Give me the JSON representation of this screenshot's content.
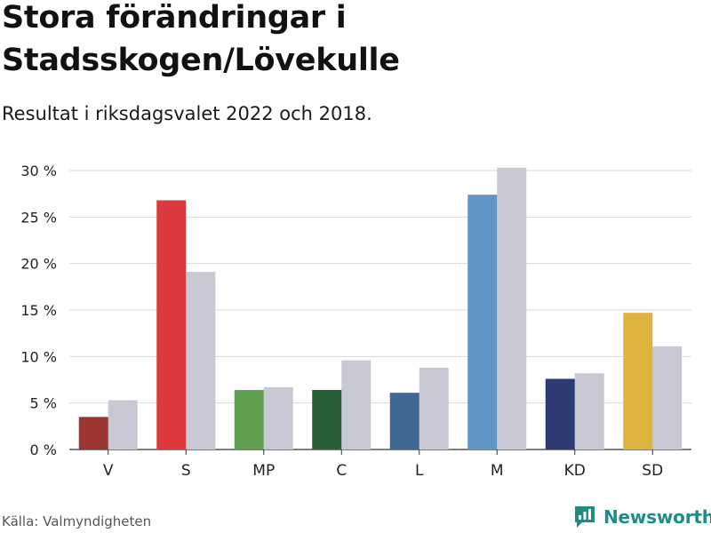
{
  "title": "Stora förändringar i Stadsskogen/Lövekulle",
  "subtitle": "Resultat i riksdagsvalet 2022 och 2018.",
  "source": "Källa: Valmyndigheten",
  "brand": "Newsworthy",
  "brand_icon": "newsworthy-logo-icon",
  "colors": {
    "brand": "#1f8d86",
    "previous": "#c8c8d4",
    "grid": "#d9d9d9"
  },
  "chart_data": {
    "type": "bar",
    "categories": [
      "V",
      "S",
      "MP",
      "C",
      "L",
      "M",
      "KD",
      "SD"
    ],
    "series": [
      {
        "name": "2022",
        "values": [
          3.5,
          26.8,
          6.4,
          6.4,
          6.1,
          27.4,
          7.6,
          14.7
        ],
        "colors": [
          "#9a3530",
          "#dd3a3d",
          "#62a051",
          "#285e35",
          "#416893",
          "#6195c6",
          "#2e3a72",
          "#dfb33f"
        ]
      },
      {
        "name": "2018",
        "values": [
          5.3,
          19.1,
          6.7,
          9.6,
          8.8,
          30.3,
          8.2,
          11.1
        ],
        "color": "#c8c8d4"
      }
    ],
    "yticks": [
      0,
      5,
      10,
      15,
      20,
      25,
      30
    ],
    "ytick_labels": [
      "0 %",
      "5 %",
      "10 %",
      "15 %",
      "20 %",
      "25 %",
      "30 %"
    ],
    "ylim": [
      0,
      30
    ],
    "grid": true,
    "xlabel": "",
    "ylabel": ""
  }
}
